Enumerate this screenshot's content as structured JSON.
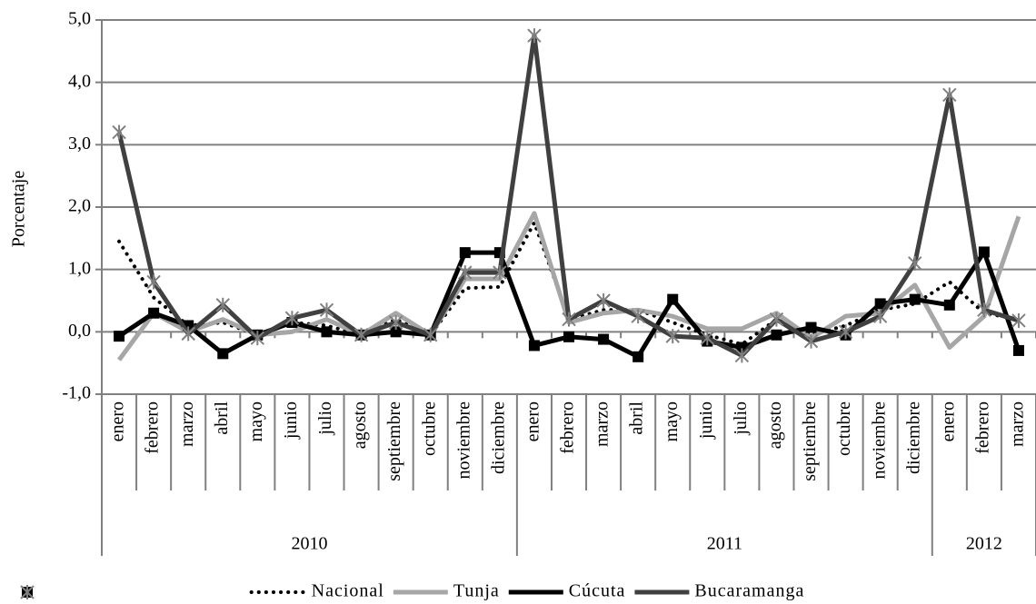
{
  "chart_data": {
    "type": "line",
    "ylabel": "Porcentaje",
    "groups": [
      {
        "label": "2010",
        "categories": [
          "enero",
          "febrero",
          "marzo",
          "abril",
          "mayo",
          "junio",
          "julio",
          "agosto",
          "septiembre",
          "octubre",
          "noviembre",
          "diciembre"
        ]
      },
      {
        "label": "2011",
        "categories": [
          "enero",
          "febrero",
          "marzo",
          "abril",
          "mayo",
          "junio",
          "julio",
          "agosto",
          "septiembre",
          "octubre",
          "noviembre",
          "diciembre"
        ]
      },
      {
        "label": "2012",
        "categories": [
          "enero",
          "febrero",
          "marzo"
        ]
      }
    ],
    "series": [
      {
        "name": "Nacional",
        "color": "#000000",
        "style": "dotted",
        "marker": "none",
        "values": [
          1.45,
          0.55,
          0.1,
          0.15,
          -0.05,
          0.15,
          0.1,
          -0.05,
          0.2,
          -0.05,
          0.7,
          0.72,
          1.75,
          0.2,
          0.35,
          0.35,
          0.15,
          -0.05,
          -0.2,
          0.2,
          -0.05,
          0.1,
          0.35,
          0.45,
          0.8,
          0.3,
          0.2
        ]
      },
      {
        "name": "Tunja",
        "color": "#a6a6a6",
        "style": "solid",
        "marker": "none",
        "values": [
          -0.45,
          0.3,
          0.0,
          0.2,
          -0.05,
          0.0,
          0.2,
          -0.05,
          0.3,
          -0.05,
          0.85,
          0.85,
          1.9,
          0.15,
          0.3,
          0.35,
          0.25,
          0.05,
          0.05,
          0.3,
          -0.1,
          0.25,
          0.3,
          0.75,
          -0.25,
          0.25,
          1.85
        ]
      },
      {
        "name": "Cúcuta",
        "color": "#000000",
        "style": "solid",
        "marker": "square",
        "values": [
          -0.07,
          0.3,
          0.1,
          -0.35,
          -0.05,
          0.15,
          0.0,
          -0.05,
          0.0,
          -0.05,
          1.27,
          1.27,
          -0.22,
          -0.08,
          -0.12,
          -0.4,
          0.52,
          -0.15,
          -0.25,
          -0.05,
          0.07,
          -0.05,
          0.45,
          0.52,
          0.43,
          1.28,
          -0.3
        ]
      },
      {
        "name": "Bucaramanga",
        "color": "#404040",
        "style": "solid",
        "marker": "asterisk",
        "values": [
          3.2,
          0.8,
          -0.03,
          0.43,
          -0.1,
          0.22,
          0.35,
          -0.05,
          0.15,
          -0.05,
          0.95,
          0.95,
          4.75,
          0.2,
          0.5,
          0.25,
          -0.07,
          -0.1,
          -0.38,
          0.2,
          -0.15,
          0.0,
          0.25,
          1.1,
          3.8,
          0.35,
          0.18
        ]
      }
    ],
    "ylim": [
      -1,
      5
    ],
    "yticks": [
      {
        "value": -1,
        "label": "-1,0"
      },
      {
        "value": 0,
        "label": "0,0"
      },
      {
        "value": 1,
        "label": "1,0"
      },
      {
        "value": 2,
        "label": "2,0"
      },
      {
        "value": 3,
        "label": "3,0"
      },
      {
        "value": 4,
        "label": "4,0"
      },
      {
        "value": 5,
        "label": "5,0"
      }
    ],
    "grid": true,
    "legend": "bottom"
  }
}
